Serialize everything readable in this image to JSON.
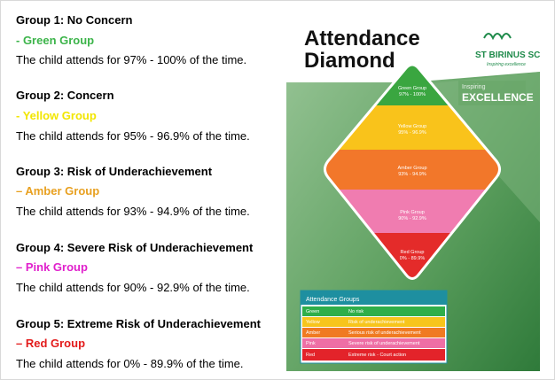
{
  "groups": [
    {
      "heading": "Group 1: No Concern",
      "group": "- Green Group",
      "description": "The child attends for 97% - 100% of the time."
    },
    {
      "heading": "Group 2: Concern",
      "group": "- Yellow Group",
      "description": "The child attends for 95% - 96.9% of the time."
    },
    {
      "heading": "Group 3: Risk of Underachievement",
      "group": "– Amber Group",
      "description": "The child attends for 93% - 94.9% of the time."
    },
    {
      "heading": "Group 4: Severe Risk of Underachievement",
      "group": "– Pink Group",
      "description": "The child attends for 90% - 92.9% of the time."
    },
    {
      "heading": "Group 5: Extreme Risk of Underachievement",
      "group": "– Red Group",
      "description": "The child attends for 0% - 89.9% of the time."
    }
  ],
  "poster": {
    "title_line1": "Attendance",
    "title_line2": "Diamond",
    "school": "ST BIRINUS SCHOOL",
    "tagline": "Inspiring excellence",
    "badge_small": "Inspiring",
    "badge_large": "EXCELLENCE",
    "diamond": [
      {
        "name": "Green Group",
        "range": "97% - 100%"
      },
      {
        "name": "Yellow Group",
        "range": "95% - 96.9%"
      },
      {
        "name": "Amber Group",
        "range": "93% - 94.9%"
      },
      {
        "name": "Pink Group",
        "range": "90% - 92.9%"
      },
      {
        "name": "Red Group",
        "range": "0% - 89.9%"
      }
    ],
    "table": {
      "title": "Attendance Groups",
      "rows": [
        [
          "Green",
          "No risk"
        ],
        [
          "Yellow",
          "Risk of underachievement"
        ],
        [
          "Amber",
          "Serious risk of underachievement"
        ],
        [
          "Pink",
          "Severe risk of underachievement"
        ],
        [
          "Red",
          "Extreme risk - Court action"
        ]
      ]
    }
  }
}
